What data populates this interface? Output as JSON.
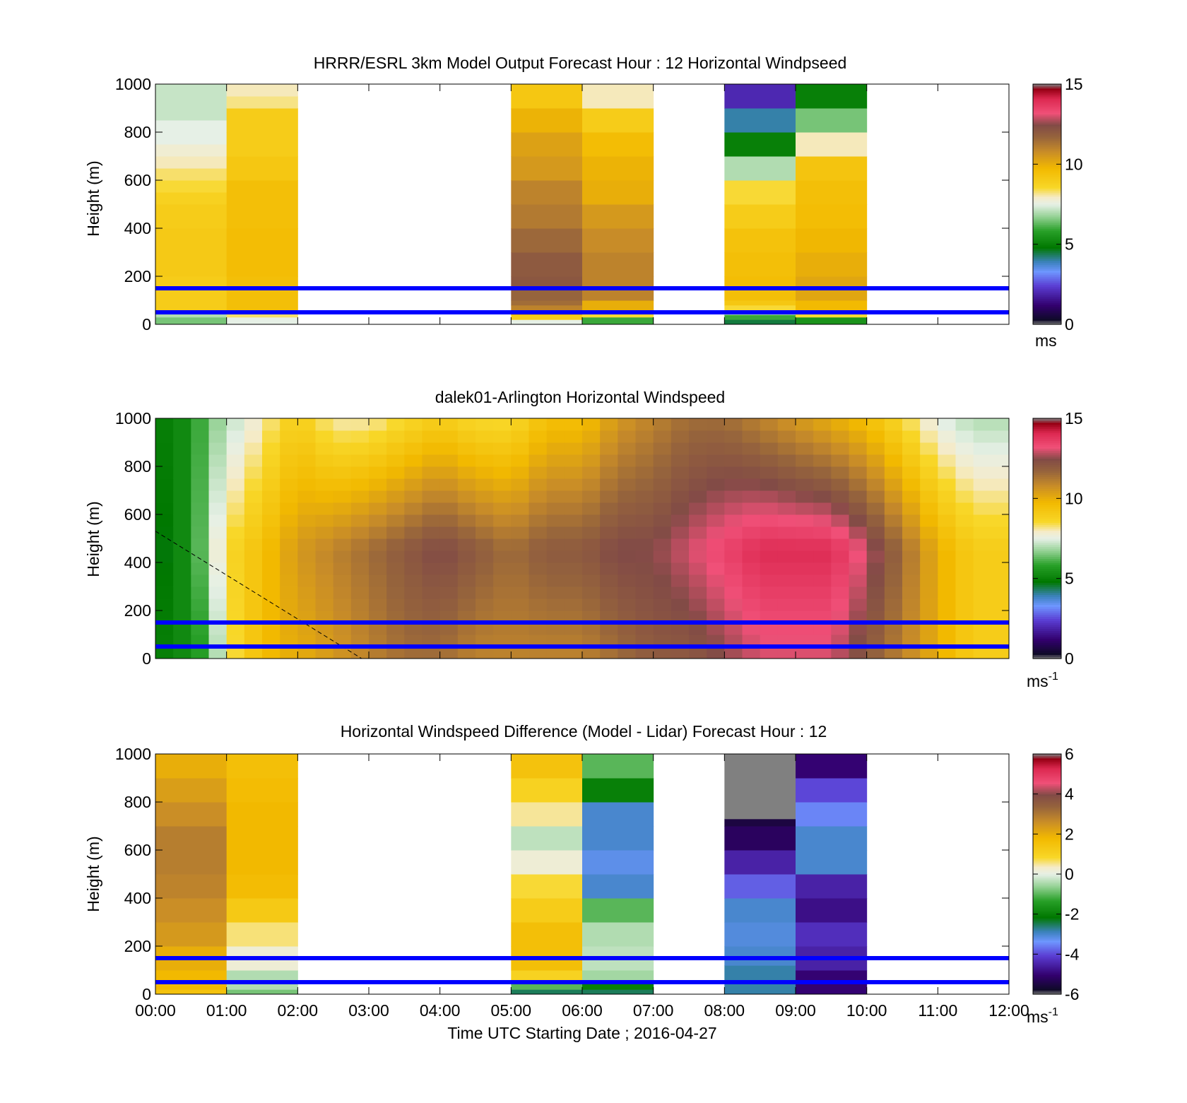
{
  "figure": {
    "xlabel": "Time UTC  Starting Date ; 2016-04-27",
    "x_ticks": [
      "00:00",
      "01:00",
      "02:00",
      "03:00",
      "04:00",
      "05:00",
      "06:00",
      "07:00",
      "08:00",
      "09:00",
      "10:00",
      "11:00",
      "12:00"
    ],
    "y_ticks": [
      "0",
      "200",
      "400",
      "600",
      "800",
      "1000"
    ],
    "ylabel": "Height (m)",
    "reference_lines_m": [
      150,
      50
    ],
    "reference_line_color": "#0000ff"
  },
  "chart_data": [
    {
      "type": "heatmap",
      "id": "model",
      "title": "HRRR/ESRL 3km Model Output   Forecast Hour : 12 Horizontal Windpseed",
      "xlabel": "",
      "ylabel": "Height (m)",
      "xlim_hours": [
        0,
        12
      ],
      "ylim": [
        0,
        1000
      ],
      "colorbar": {
        "min": 0,
        "max": 15,
        "ticks": [
          "0",
          "5",
          "10",
          "15"
        ],
        "unit_label": "ms",
        "unit_sup": ""
      },
      "columns": [
        {
          "start_hour": 0,
          "end_hour": 1,
          "cells": [
            [
              30,
              6.5
            ],
            [
              60,
              7
            ],
            [
              100,
              9
            ],
            [
              200,
              9
            ],
            [
              300,
              9.1
            ],
            [
              400,
              9.1
            ],
            [
              500,
              9
            ],
            [
              550,
              8.8
            ],
            [
              600,
              8.5
            ],
            [
              650,
              8.3
            ],
            [
              700,
              8
            ],
            [
              750,
              7.8
            ],
            [
              850,
              7.5
            ],
            [
              1000,
              7.2
            ]
          ]
        },
        {
          "start_hour": 1,
          "end_hour": 2,
          "cells": [
            [
              30,
              7.5
            ],
            [
              60,
              8.3
            ],
            [
              200,
              9.5
            ],
            [
              400,
              9.6
            ],
            [
              600,
              9.5
            ],
            [
              700,
              9.2
            ],
            [
              800,
              9
            ],
            [
              900,
              9
            ],
            [
              950,
              8.2
            ],
            [
              1000,
              8
            ]
          ]
        },
        {
          "start_hour": 5,
          "end_hour": 6,
          "cells": [
            [
              20,
              7.5
            ],
            [
              40,
              9
            ],
            [
              60,
              10
            ],
            [
              80,
              11
            ],
            [
              100,
              11.5
            ],
            [
              150,
              11.7
            ],
            [
              200,
              12.1
            ],
            [
              300,
              12
            ],
            [
              400,
              11.6
            ],
            [
              500,
              11.2
            ],
            [
              600,
              11
            ],
            [
              700,
              10.5
            ],
            [
              800,
              10.3
            ],
            [
              900,
              9.9
            ],
            [
              1000,
              9.2
            ]
          ]
        },
        {
          "start_hour": 6,
          "end_hour": 7,
          "cells": [
            [
              30,
              6
            ],
            [
              60,
              8.5
            ],
            [
              100,
              10
            ],
            [
              200,
              11
            ],
            [
              300,
              11
            ],
            [
              400,
              10.8
            ],
            [
              500,
              10.5
            ],
            [
              600,
              10
            ],
            [
              700,
              9.9
            ],
            [
              800,
              9.6
            ],
            [
              900,
              9
            ],
            [
              1000,
              8
            ]
          ]
        },
        {
          "start_hour": 8,
          "end_hour": 9,
          "cells": [
            [
              20,
              4.5
            ],
            [
              40,
              6
            ],
            [
              60,
              7
            ],
            [
              80,
              8.5
            ],
            [
              100,
              9.2
            ],
            [
              150,
              9.5
            ],
            [
              200,
              9.6
            ],
            [
              300,
              9.5
            ],
            [
              400,
              9.4
            ],
            [
              500,
              9
            ],
            [
              600,
              8.5
            ],
            [
              700,
              7
            ],
            [
              800,
              5
            ],
            [
              900,
              4
            ],
            [
              1000,
              2
            ]
          ]
        },
        {
          "start_hour": 9,
          "end_hour": 10,
          "cells": [
            [
              30,
              5.5
            ],
            [
              60,
              8.5
            ],
            [
              100,
              9.7
            ],
            [
              200,
              10.2
            ],
            [
              300,
              10
            ],
            [
              400,
              9.8
            ],
            [
              500,
              9.6
            ],
            [
              600,
              9.5
            ],
            [
              700,
              9.3
            ],
            [
              800,
              8
            ],
            [
              900,
              6.5
            ],
            [
              1000,
              5
            ]
          ]
        }
      ],
      "annotation_line": null
    },
    {
      "type": "heatmap",
      "id": "lidar",
      "title": "dalek01-Arlington  Horizontal Windspeed",
      "xlabel": "",
      "ylabel": "Height (m)",
      "xlim_hours": [
        0,
        12
      ],
      "ylim": [
        0,
        1000
      ],
      "colorbar": {
        "min": 0,
        "max": 15,
        "ticks": [
          "0",
          "5",
          "10",
          "15"
        ],
        "unit_label": "ms",
        "unit_sup": "-1"
      },
      "time_step_hours": 0.25,
      "coverage_hours": [
        0,
        12
      ],
      "profile_keys": {
        "hours": [
          0,
          0.25,
          0.5,
          0.75,
          1,
          1.25,
          1.5,
          1.75,
          2,
          2.5,
          3,
          3.5,
          4,
          4.5,
          5,
          5.5,
          6,
          6.5,
          7,
          7.5,
          8,
          8.5,
          9,
          9.5,
          10,
          10.5,
          11,
          11.5,
          12
        ],
        "surface_ms": [
          5,
          5,
          5.5,
          6,
          8,
          9,
          9.5,
          10,
          10,
          10.5,
          11,
          11.5,
          11.5,
          11,
          11,
          11,
          11,
          11.5,
          12,
          12,
          12.5,
          13,
          13,
          13,
          12,
          11,
          10,
          9,
          9
        ],
        "mid_ms": [
          4.5,
          5,
          5.5,
          7,
          8.5,
          9,
          9.5,
          10,
          10.5,
          11,
          11.5,
          12,
          12.5,
          12,
          11.5,
          12,
          12,
          12.5,
          12.5,
          13,
          13.5,
          14,
          14,
          14,
          13,
          11.5,
          10,
          9,
          9
        ],
        "top_ms": [
          5,
          5,
          5.5,
          6.5,
          7,
          7.5,
          8,
          8.5,
          9,
          8,
          8,
          8.5,
          9,
          8.5,
          8.5,
          9.5,
          9.5,
          10.5,
          11,
          11.5,
          11.5,
          11,
          10.5,
          10,
          9.5,
          8.5,
          7.5,
          7,
          7
        ]
      },
      "annotation_line": {
        "style": "dashed",
        "from": {
          "hour": 0,
          "height_m": 530
        },
        "to": {
          "hour": 2.9,
          "height_m": 0
        }
      }
    },
    {
      "type": "heatmap",
      "id": "difference",
      "title": "Horizontal Windspeed Difference (Model - Lidar) Forecast Hour : 12",
      "xlabel": "Time UTC  Starting Date ; 2016-04-27",
      "ylabel": "Height (m)",
      "xlim_hours": [
        0,
        12
      ],
      "ylim": [
        0,
        1000
      ],
      "colorbar": {
        "min": -6,
        "max": 6,
        "ticks": [
          "-6",
          "-4",
          "-2",
          "0",
          "2",
          "4",
          "6"
        ],
        "unit_label": "ms",
        "unit_sup": "-1"
      },
      "columns": [
        {
          "start_hour": 0,
          "end_hour": 1,
          "cells": [
            [
              20,
              1.5
            ],
            [
              100,
              1.8
            ],
            [
              200,
              2
            ],
            [
              300,
              2.4
            ],
            [
              400,
              2.6
            ],
            [
              500,
              2.8
            ],
            [
              600,
              2.9
            ],
            [
              700,
              2.9
            ],
            [
              800,
              2.6
            ],
            [
              900,
              2.3
            ],
            [
              1000,
              2
            ]
          ]
        },
        {
          "start_hour": 1,
          "end_hour": 2,
          "cells": [
            [
              20,
              -0.8
            ],
            [
              100,
              -0.4
            ],
            [
              200,
              0.2
            ],
            [
              300,
              0.6
            ],
            [
              400,
              1.3
            ],
            [
              500,
              1.7
            ],
            [
              600,
              1.8
            ],
            [
              700,
              1.8
            ],
            [
              800,
              1.8
            ],
            [
              900,
              1.7
            ],
            [
              1000,
              1.6
            ]
          ]
        },
        {
          "start_hour": 5,
          "end_hour": 6,
          "cells": [
            [
              20,
              -2.5
            ],
            [
              60,
              -1
            ],
            [
              100,
              1
            ],
            [
              200,
              1.6
            ],
            [
              300,
              1.6
            ],
            [
              400,
              1.2
            ],
            [
              500,
              0.8
            ],
            [
              600,
              0.2
            ],
            [
              700,
              -0.3
            ],
            [
              800,
              0.5
            ],
            [
              900,
              1
            ],
            [
              1000,
              1.5
            ]
          ]
        },
        {
          "start_hour": 6,
          "end_hour": 7,
          "cells": [
            [
              20,
              -2.5
            ],
            [
              60,
              -2
            ],
            [
              100,
              -0.5
            ],
            [
              200,
              -0.3
            ],
            [
              300,
              -0.4
            ],
            [
              400,
              -1
            ],
            [
              500,
              -3
            ],
            [
              600,
              -3.2
            ],
            [
              700,
              -3
            ],
            [
              800,
              -3
            ],
            [
              900,
              -2
            ],
            [
              1000,
              -1
            ]
          ]
        },
        {
          "start_hour": 8,
          "end_hour": 9,
          "cells": [
            [
              120,
              -2.8
            ],
            [
              200,
              -3
            ],
            [
              300,
              -3.1
            ],
            [
              400,
              -3
            ],
            [
              500,
              -3.8
            ],
            [
              600,
              -4.5
            ],
            [
              700,
              -5.2
            ],
            [
              730,
              -5.5
            ],
            [
              1000,
              -6.3
            ]
          ]
        },
        {
          "start_hour": 9,
          "end_hour": 10,
          "cells": [
            [
              20,
              -5
            ],
            [
              100,
              -5
            ],
            [
              200,
              -4.5
            ],
            [
              300,
              -4.3
            ],
            [
              400,
              -4.8
            ],
            [
              500,
              -4.5
            ],
            [
              600,
              -3
            ],
            [
              700,
              -3
            ],
            [
              800,
              -3.5
            ],
            [
              900,
              -4
            ],
            [
              1000,
              -5
            ]
          ]
        }
      ],
      "annotation_line": null
    }
  ]
}
